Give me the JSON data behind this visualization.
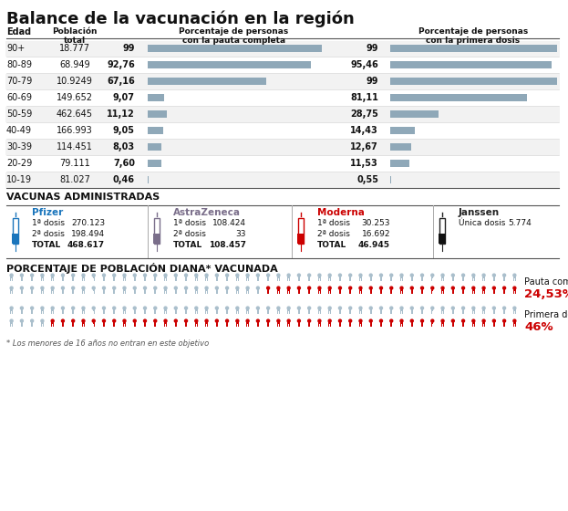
{
  "title": "Balance de la vacunación en la región",
  "age_groups": [
    "90+",
    "80-89",
    "70-79",
    "60-69",
    "50-59",
    "40-49",
    "30-39",
    "20-29",
    "10-19"
  ],
  "poblacion": [
    "18.777",
    "68.949",
    "10.9249",
    "149.652",
    "462.645",
    "166.993",
    "114.451",
    "79.111",
    "81.027"
  ],
  "pauta_completa_val": [
    "99",
    "92,76",
    "67,16",
    "9,07",
    "11,12",
    "9,05",
    "8,03",
    "7,60",
    "0,46"
  ],
  "pauta_completa_pct": [
    99,
    92.76,
    67.16,
    9.07,
    11.12,
    9.05,
    8.03,
    7.6,
    0.46
  ],
  "primera_dosis_val": [
    "99",
    "95,46",
    "99",
    "81,11",
    "28,75",
    "14,43",
    "12,67",
    "11,53",
    "0,55"
  ],
  "primera_dosis_pct": [
    99,
    95.46,
    99,
    81.11,
    28.75,
    14.43,
    12.67,
    11.53,
    0.55
  ],
  "bar_color": "#8fa8b8",
  "vacunas_title": "VACUNAS ADMINISTRADAS",
  "vacunas": [
    {
      "name": "Pfizer",
      "color": "#1a75bc",
      "vial_color": "#1a75bc",
      "rows": [
        [
          "1ª dosis",
          "270.123"
        ],
        [
          "2ª dosis",
          "198.494"
        ],
        [
          "TOTAL",
          "468.617"
        ]
      ]
    },
    {
      "name": "AstraZeneca",
      "color": "#7a6e8a",
      "vial_color": "#7a6e8a",
      "rows": [
        [
          "1ª dosis",
          "108.424"
        ],
        [
          "2ª dosis",
          "33"
        ],
        [
          "TOTAL",
          "108.457"
        ]
      ]
    },
    {
      "name": "Moderna",
      "color": "#cc0000",
      "vial_color": "#cc0000",
      "rows": [
        [
          "1ª dosis",
          "30.253"
        ],
        [
          "2ª dosis",
          "16.692"
        ],
        [
          "TOTAL",
          "46.945"
        ]
      ]
    },
    {
      "name": "Janssen",
      "color": "#222222",
      "vial_color": "#111111",
      "rows": [
        [
          "Única dosis",
          "5.774"
        ]
      ]
    }
  ],
  "diana_title": "PORCENTAJE DE POBLACIÓN DIANA* VACUNADA",
  "pauta_pct_label": "24,53%",
  "primera_pct_label": "46%",
  "pauta_completa_text": "Pauta completa",
  "primera_dosis_text": "Primera dosis",
  "footnote": "* Los menores de 16 años no entran en este objetivo",
  "person_color_gray": "#aabfcc",
  "person_color_red": "#cc0000",
  "bg_color": "#ffffff",
  "n_red_pauta": 25,
  "n_red_primera": 46,
  "total_persons": 100,
  "persons_per_row": 50
}
